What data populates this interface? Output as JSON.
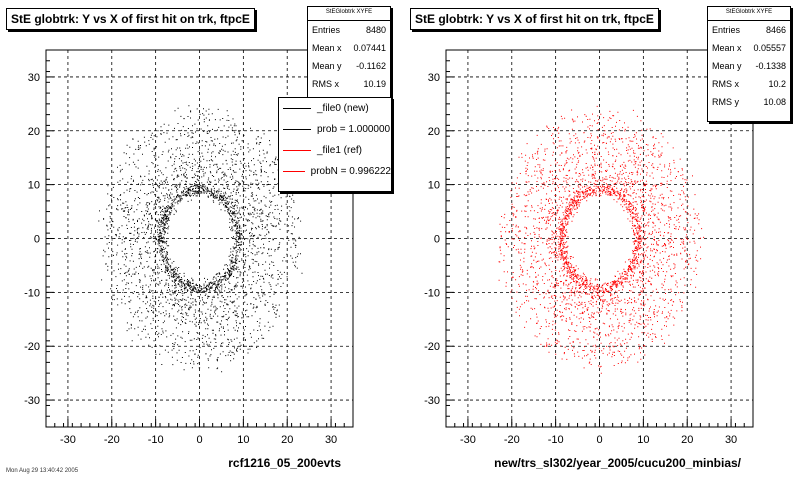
{
  "footer_text": "Mon Aug 29 13:40:42 2005",
  "chart_data": [
    {
      "type": "scatter",
      "title": "StE globtrk: Y vs X of first hit on trk, ftpcE",
      "xlabel": "rcf1216_05_200evts",
      "ylabel": "",
      "xlim": [
        -35,
        35
      ],
      "ylim": [
        -35,
        35
      ],
      "xticks": [
        -30,
        -20,
        -10,
        0,
        10,
        20,
        30
      ],
      "yticks": [
        -30,
        -20,
        -10,
        0,
        10,
        20,
        30
      ],
      "grid": true,
      "marker_color": "#000000",
      "distribution": {
        "inner_radius": 8,
        "outer_radius": 23,
        "center": [
          0,
          0
        ]
      },
      "stats_box": {
        "header": "StEGlobtrk XYFE",
        "rows": [
          {
            "label": "Entries",
            "value": "8480"
          },
          {
            "label": "Mean x",
            "value": "0.07441"
          },
          {
            "label": "Mean y",
            "value": "-0.1162"
          },
          {
            "label": "RMS x",
            "value": "10.19"
          }
        ]
      },
      "legend": {
        "placement": "top-right",
        "entries": [
          {
            "label": "_file0 (new)",
            "color": "#000000"
          },
          {
            "label": "prob = 1.000000",
            "color": "#000000"
          },
          {
            "label": "_file1 (ref)",
            "color": "#ff0000"
          },
          {
            "label": "probN = 0.996222",
            "color": "#ff0000"
          }
        ]
      }
    },
    {
      "type": "scatter",
      "title": "StE globtrk: Y vs X of first hit on trk, ftpcE",
      "xlabel": "new/trs_sl302/year_2005/cucu200_minbias/",
      "ylabel": "",
      "xlim": [
        -35,
        35
      ],
      "ylim": [
        -35,
        35
      ],
      "xticks": [
        -30,
        -20,
        -10,
        0,
        10,
        20,
        30
      ],
      "yticks": [
        -30,
        -20,
        -10,
        0,
        10,
        20,
        30
      ],
      "grid": true,
      "marker_color": "#ff0000",
      "distribution": {
        "inner_radius": 8,
        "outer_radius": 23,
        "center": [
          0,
          0
        ]
      },
      "stats_box": {
        "header": "StEGlobtrk XYFE",
        "rows": [
          {
            "label": "Entries",
            "value": "8466"
          },
          {
            "label": "Mean x",
            "value": "0.05557"
          },
          {
            "label": "Mean y",
            "value": "-0.1338"
          },
          {
            "label": "RMS x",
            "value": "10.2"
          },
          {
            "label": "RMS y",
            "value": "10.08"
          }
        ]
      }
    }
  ]
}
